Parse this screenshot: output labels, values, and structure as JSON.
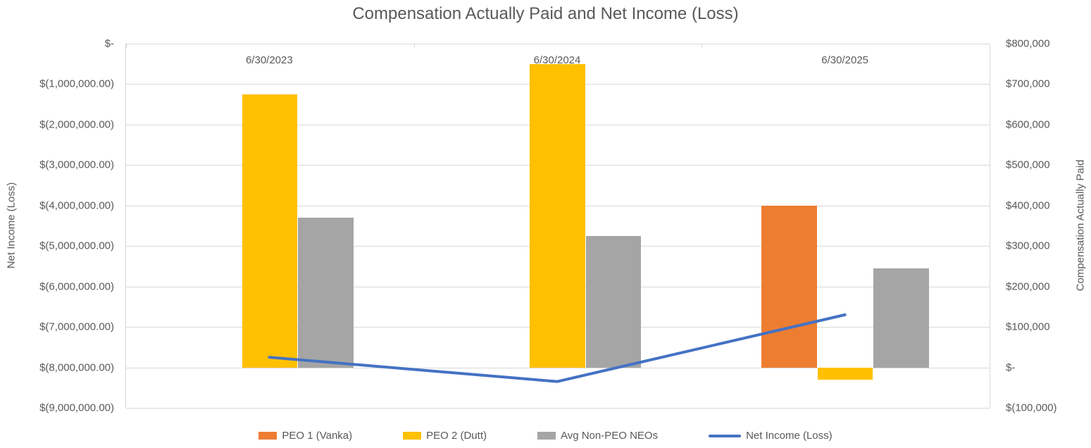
{
  "chart_data": {
    "type": "bar",
    "subtype": "combo-clustered-bar-with-line-dual-axis",
    "title": "Compensation Actually Paid and Net Income (Loss)",
    "categories": [
      "6/30/2023",
      "6/30/2024",
      "6/30/2025"
    ],
    "series": [
      {
        "name": "PEO 1 (Vanka)",
        "type": "bar",
        "axis": "right",
        "color": "#ED7D31",
        "values": [
          null,
          null,
          400000
        ]
      },
      {
        "name": "PEO 2 (Dutt)",
        "type": "bar",
        "axis": "right",
        "color": "#FFC000",
        "values": [
          675000,
          750000,
          -30000
        ]
      },
      {
        "name": "Avg Non-PEO NEOs",
        "type": "bar",
        "axis": "right",
        "color": "#A5A5A5",
        "values": [
          370000,
          325000,
          245000
        ]
      },
      {
        "name": "Net Income (Loss)",
        "type": "line",
        "axis": "left",
        "color": "#4472C4",
        "values": [
          -7750000,
          -8350000,
          -6700000
        ]
      }
    ],
    "left_axis": {
      "label": "Net Income (Loss)",
      "max": 0,
      "min": -9000000,
      "step": 1000000,
      "tick_labels": [
        "$-",
        "$(1,000,000.00)",
        "$(2,000,000.00)",
        "$(3,000,000.00)",
        "$(4,000,000.00)",
        "$(5,000,000.00)",
        "$(6,000,000.00)",
        "$(7,000,000.00)",
        "$(8,000,000.00)",
        "$(9,000,000.00)"
      ]
    },
    "right_axis": {
      "label": "Compensation Actually Paid",
      "max": 800000,
      "min": -100000,
      "step": 100000,
      "tick_labels": [
        "$800,000",
        "$700,000",
        "$600,000",
        "$500,000",
        "$400,000",
        "$300,000",
        "$200,000",
        "$100,000",
        "$-",
        "$(100,000)"
      ]
    },
    "grid": true,
    "legend_position": "bottom",
    "colors": {
      "text": "#595959",
      "gridline": "#D9D9D9",
      "background": "#FFFFFF"
    }
  }
}
